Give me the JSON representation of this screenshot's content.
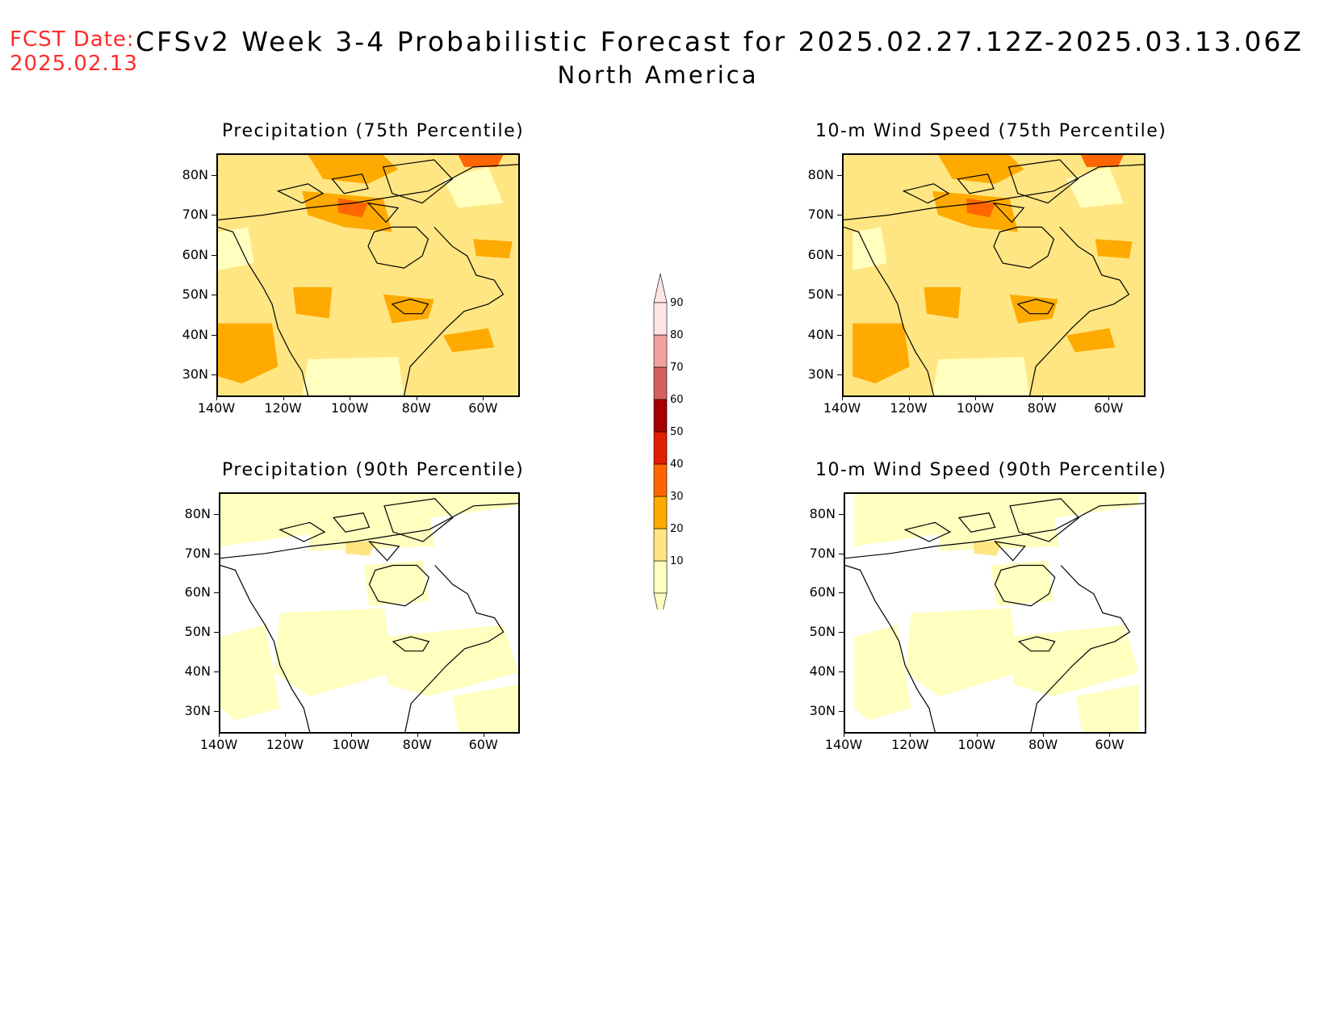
{
  "header": {
    "fcst_label": "FCST Date:",
    "fcst_date": "2025.02.13",
    "title": "CFSv2 Week 3-4 Probabilistic Forecast for 2025.02.27.12Z-2025.03.13.06Z",
    "subtitle": "North America"
  },
  "colors": {
    "c10": "#ffffc0",
    "c20": "#ffe682",
    "c30": "#ffaa00",
    "c40": "#ff6600",
    "c50": "#e01e00",
    "c60": "#a50000",
    "c70": "#d46060",
    "c80": "#f2a0a0",
    "c90": "#ffe6e6"
  },
  "colorbar": {
    "levels": [
      "10",
      "20",
      "30",
      "40",
      "50",
      "60",
      "70",
      "80",
      "90"
    ]
  },
  "axes": {
    "lat_labels": [
      "80N",
      "70N",
      "60N",
      "50N",
      "40N",
      "30N"
    ],
    "lon_labels": [
      "140W",
      "120W",
      "100W",
      "80W",
      "60W"
    ]
  },
  "panels": [
    {
      "id": "precip75",
      "title": "Precipitation (75th Percentile)",
      "base_class": "20",
      "shading": "strong"
    },
    {
      "id": "wind75",
      "title": "10-m Wind Speed (75th Percentile)",
      "base_class": "20",
      "shading": "strong"
    },
    {
      "id": "precip90",
      "title": "Precipitation (90th Percentile)",
      "base_class": "white",
      "shading": "weak"
    },
    {
      "id": "wind90",
      "title": "10-m Wind Speed (90th Percentile)",
      "base_class": "white",
      "shading": "weak"
    }
  ]
}
